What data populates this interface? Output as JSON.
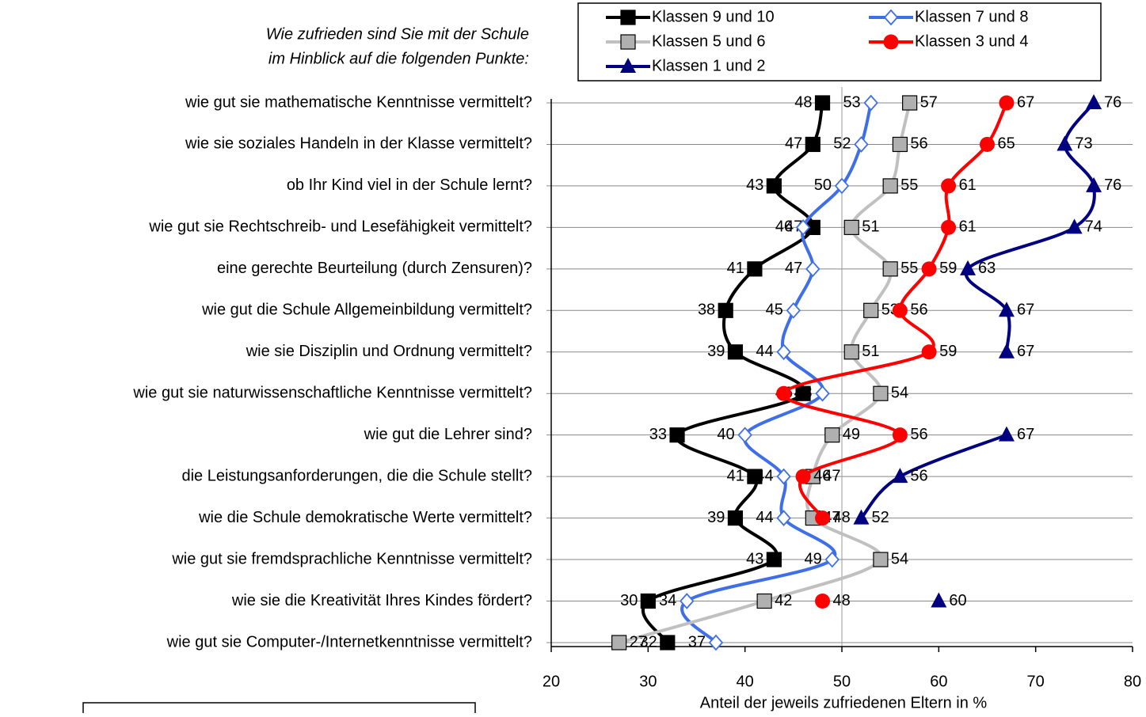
{
  "chart_data": {
    "type": "line",
    "title": [
      "Wie zufrieden sind Sie mit der Schule",
      "im Hinblick auf die folgenden Punkte:"
    ],
    "xlabel": "Anteil der jeweils zufriedenen Eltern in %",
    "categories": [
      "wie gut sie mathematische Kenntnisse vermittelt?",
      "wie sie soziales Handeln in der Klasse vermittelt?",
      "ob Ihr Kind viel in der Schule lernt?",
      "wie gut sie Rechtschreib- und Lesefähigkeit vermittelt?",
      "eine gerechte Beurteilung (durch Zensuren)?",
      "wie gut die Schule Allgemeinbildung vermittelt?",
      "wie sie Disziplin und Ordnung vermittelt?",
      "wie gut sie naturwissenschaftliche Kenntnisse vermittelt?",
      "wie gut die Lehrer sind?",
      "die Leistungsanforderungen, die die Schule stellt?",
      "wie die Schule demokratische Werte vermittelt?",
      "wie gut sie fremdsprachliche Kenntnisse vermittelt?",
      "wie sie die Kreativität Ihres Kindes fördert?",
      "wie gut sie Computer-/Internetkenntnisse vermittelt?"
    ],
    "series": [
      {
        "name": "Klassen 9 und 10",
        "color": "#000000",
        "marker": "square",
        "values": [
          48,
          47,
          43,
          47,
          41,
          38,
          39,
          46,
          33,
          41,
          39,
          43,
          30,
          32
        ]
      },
      {
        "name": "Klassen 7 und 8",
        "color": "#3f6fe8",
        "marker": "diamond",
        "values": [
          53,
          52,
          50,
          46,
          47,
          45,
          44,
          48,
          40,
          44,
          44,
          49,
          34,
          37
        ]
      },
      {
        "name": "Klassen 5 und 6",
        "color": "#c0c0c0",
        "marker": "square",
        "values": [
          57,
          56,
          55,
          51,
          55,
          53,
          51,
          54,
          49,
          47,
          47,
          54,
          42,
          27
        ]
      },
      {
        "name": "Klassen 3 und 4",
        "color": "#ff0000",
        "marker": "circle",
        "values": [
          67,
          65,
          61,
          61,
          59,
          56,
          59,
          44,
          56,
          46,
          48,
          null,
          48,
          null
        ]
      },
      {
        "name": "Klassen 1 und 2",
        "color": "#000080",
        "marker": "triangle",
        "values": [
          76,
          73,
          76,
          74,
          63,
          67,
          67,
          null,
          67,
          56,
          52,
          null,
          60,
          null
        ]
      }
    ],
    "xlim": [
      20,
      80
    ],
    "xticks": [
      20,
      30,
      40,
      50,
      60,
      70,
      80
    ],
    "grid": true
  }
}
